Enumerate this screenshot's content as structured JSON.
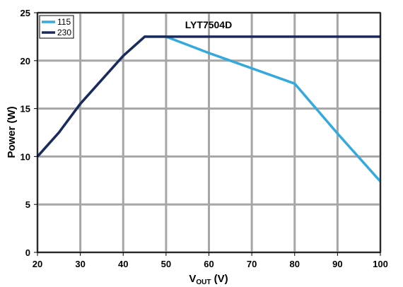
{
  "chart_data": {
    "type": "line",
    "title": "LYT7504D",
    "xlabel_main": "V",
    "xlabel_sub": "OUT",
    "xlabel_unit": " (V)",
    "ylabel": "Power (W)",
    "xlim": [
      20,
      100
    ],
    "ylim": [
      0,
      25
    ],
    "xticks": [
      20,
      30,
      40,
      50,
      60,
      70,
      80,
      90,
      100
    ],
    "yticks": [
      0,
      5,
      10,
      15,
      20,
      25
    ],
    "grid": true,
    "legend_position": "top-left",
    "series": [
      {
        "name": "115",
        "color": "#33a9dd",
        "x": [
          20,
          25,
          30,
          40,
          45,
          50,
          60,
          65,
          70,
          80,
          90,
          100
        ],
        "y": [
          10,
          12.5,
          15.5,
          20.5,
          22.5,
          22.5,
          20.8,
          20,
          19.2,
          17.6,
          12.4,
          7.4
        ]
      },
      {
        "name": "230",
        "color": "#1c2a5b",
        "x": [
          20,
          25,
          30,
          40,
          45,
          100
        ],
        "y": [
          10,
          12.5,
          15.5,
          20.5,
          22.5,
          22.5
        ]
      }
    ]
  }
}
